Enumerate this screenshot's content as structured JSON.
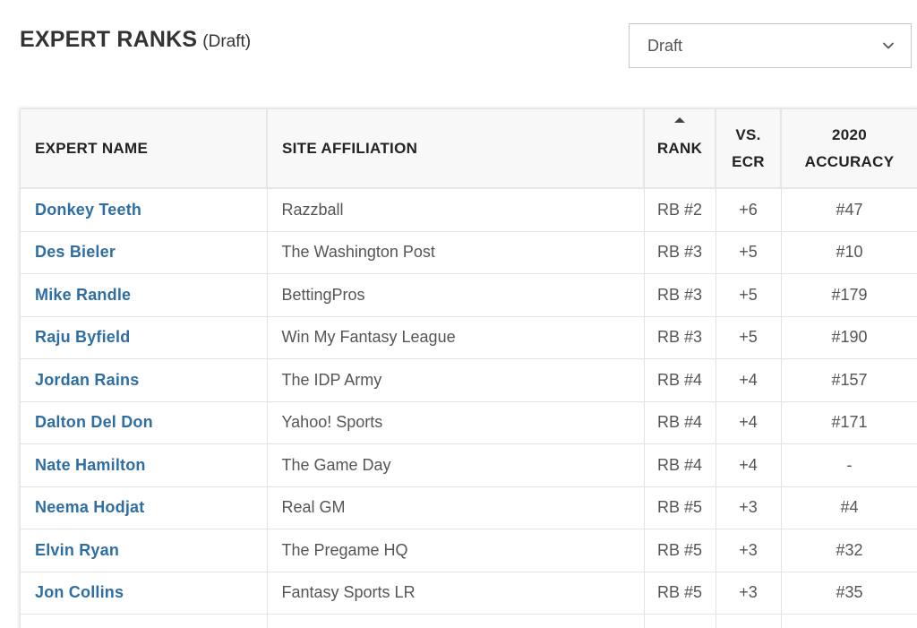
{
  "header": {
    "title": "EXPERT RANKS",
    "subtitle": "(Draft)"
  },
  "select": {
    "value": "Draft",
    "icon": "chevron-down-icon"
  },
  "table": {
    "columns": {
      "expert_name": "EXPERT NAME",
      "site_affiliation": "SITE AFFILIATION",
      "rank": "RANK",
      "vs_ecr_line1": "VS.",
      "vs_ecr_line2": "ECR",
      "accuracy_line1": "2020",
      "accuracy_line2": "ACCURACY"
    },
    "sort": {
      "column": "rank",
      "direction": "ascending"
    },
    "rows": [
      {
        "name": "Donkey Teeth",
        "site": "Razzball",
        "rank": "RB #2",
        "vs_ecr": "+6",
        "accuracy": "#47"
      },
      {
        "name": "Des Bieler",
        "site": "The Washington Post",
        "rank": "RB #3",
        "vs_ecr": "+5",
        "accuracy": "#10"
      },
      {
        "name": "Mike Randle",
        "site": "BettingPros",
        "rank": "RB #3",
        "vs_ecr": "+5",
        "accuracy": "#179"
      },
      {
        "name": "Raju Byfield",
        "site": "Win My Fantasy League",
        "rank": "RB #3",
        "vs_ecr": "+5",
        "accuracy": "#190"
      },
      {
        "name": "Jordan Rains",
        "site": "The IDP Army",
        "rank": "RB #4",
        "vs_ecr": "+4",
        "accuracy": "#157"
      },
      {
        "name": "Dalton Del Don",
        "site": "Yahoo! Sports",
        "rank": "RB #4",
        "vs_ecr": "+4",
        "accuracy": "#171"
      },
      {
        "name": "Nate Hamilton",
        "site": "The Game Day",
        "rank": "RB #4",
        "vs_ecr": "+4",
        "accuracy": "-"
      },
      {
        "name": "Neema Hodjat",
        "site": "Real GM",
        "rank": "RB #5",
        "vs_ecr": "+3",
        "accuracy": "#4"
      },
      {
        "name": "Elvin Ryan",
        "site": "The Pregame HQ",
        "rank": "RB #5",
        "vs_ecr": "+3",
        "accuracy": "#32"
      },
      {
        "name": "Jon Collins",
        "site": "Fantasy Sports LR",
        "rank": "RB #5",
        "vs_ecr": "+3",
        "accuracy": "#35"
      },
      {
        "name": "",
        "site": "",
        "rank": "",
        "vs_ecr": "",
        "accuracy": ""
      }
    ]
  },
  "colors": {
    "link": "#2f6ea3",
    "header_bg": "#f8f8f8",
    "border": "#e3e3e3",
    "text": "#555555"
  }
}
